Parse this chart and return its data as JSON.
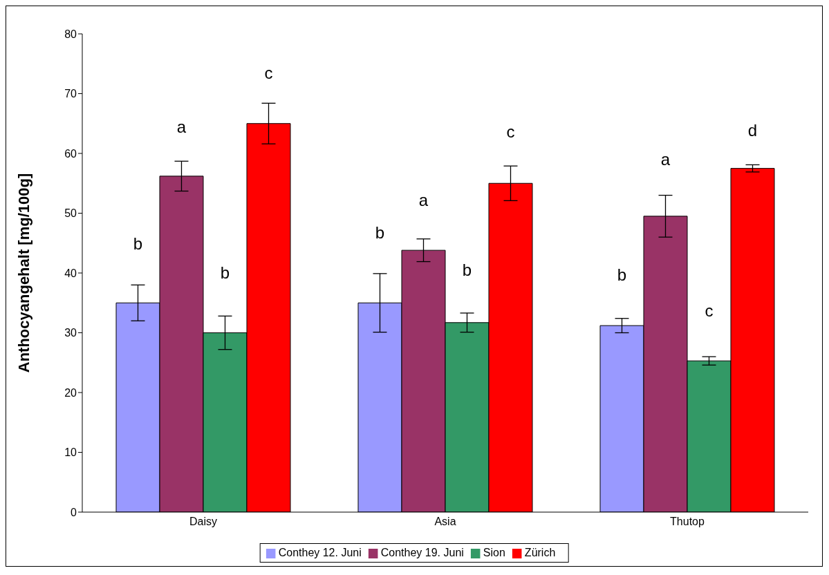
{
  "chart_data": {
    "type": "bar",
    "ylabel": "Anthocyangehalt [mg/100g]",
    "categories": [
      "Daisy",
      "Asia",
      "Thutop"
    ],
    "series": [
      {
        "name": "Conthey 12. Juni",
        "color": "#9999ff",
        "values": [
          35,
          35,
          31.2
        ],
        "errors": [
          3,
          4.9,
          1.2
        ]
      },
      {
        "name": "Conthey 19. Juni",
        "color": "#993366",
        "values": [
          56.2,
          43.8,
          49.5
        ],
        "errors": [
          2.5,
          1.9,
          3.5
        ]
      },
      {
        "name": "Sion",
        "color": "#339966",
        "values": [
          30,
          31.7,
          25.3
        ],
        "errors": [
          2.8,
          1.6,
          0.7
        ]
      },
      {
        "name": "Zürich",
        "color": "#ff0000",
        "values": [
          65,
          55,
          57.5
        ],
        "errors": [
          3.4,
          2.9,
          0.6
        ]
      }
    ],
    "ylim": [
      0,
      80
    ],
    "yticks": [
      0,
      10,
      20,
      30,
      40,
      50,
      60,
      70,
      80
    ],
    "grid": false,
    "legend": "bottom",
    "annotations": [
      "b",
      "a",
      "b",
      "c",
      "b",
      "a",
      "b",
      "c",
      "b",
      "a",
      "c",
      "d"
    ]
  }
}
